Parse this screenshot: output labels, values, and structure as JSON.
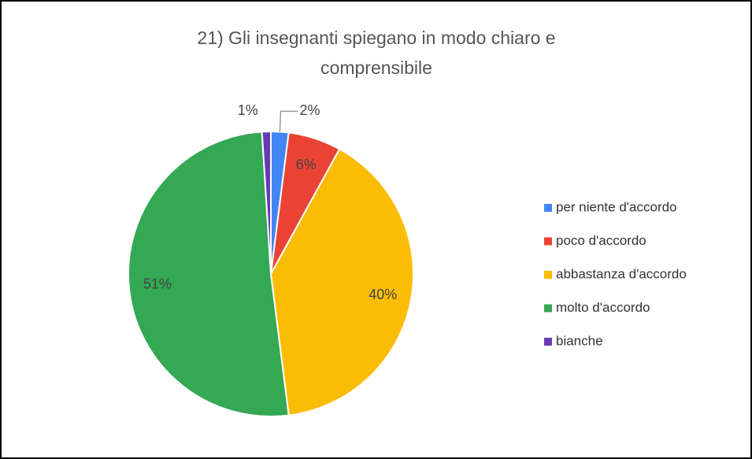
{
  "chart_data": {
    "type": "pie",
    "title": "21) Gli insegnanti spiegano in modo chiaro e comprensibile",
    "categories": [
      "per niente d'accordo",
      "poco d'accordo",
      "abbastanza d'accordo",
      "molto d'accordo",
      "bianche"
    ],
    "values": [
      2,
      6,
      40,
      51,
      1
    ],
    "value_labels": [
      "2%",
      "6%",
      "40%",
      "51%",
      "1%"
    ],
    "colors": [
      "#4285f4",
      "#ea4335",
      "#fbbc04",
      "#34a853",
      "#673ab7"
    ],
    "legend": "right"
  }
}
